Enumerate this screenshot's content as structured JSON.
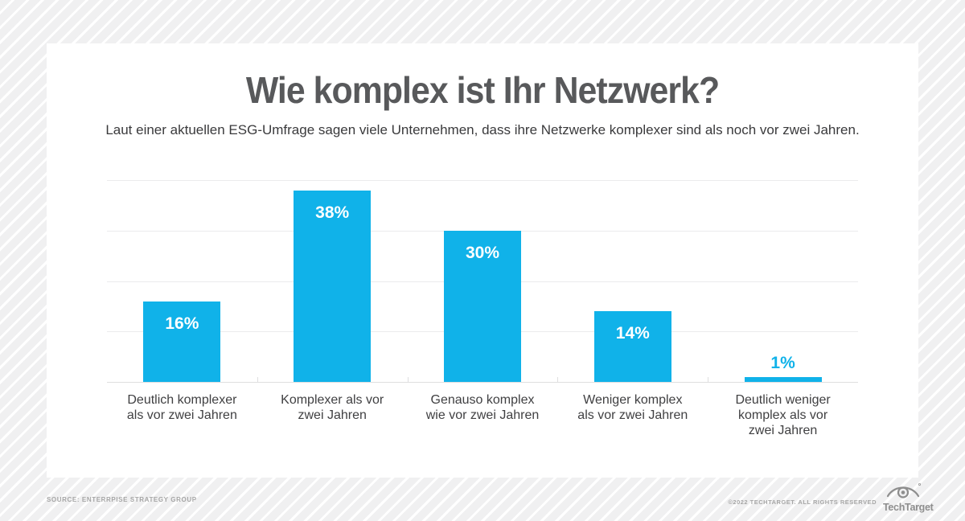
{
  "header": {
    "title": "Wie komplex ist Ihr Netzwerk?",
    "subtitle": "Laut einer aktuellen ESG-Umfrage sagen viele Unternehmen, dass ihre Netzwerke komplexer sind als noch vor zwei Jahren."
  },
  "chart_data": {
    "type": "bar",
    "title": "Wie komplex ist Ihr Netzwerk?",
    "subtitle": "Laut einer aktuellen ESG-Umfrage sagen viele Unternehmen, dass ihre Netzwerke komplexer sind als noch vor zwei Jahren.",
    "categories": [
      "Deutlich komplexer als vor zwei Jahren",
      "Komplexer als vor zwei Jahren",
      "Genauso komplex wie vor zwei Jahren",
      "Weniger komplex als vor zwei Jahren",
      "Deutlich weniger komplex als vor zwei Jahren"
    ],
    "label_lines": [
      [
        "Deutlich komplexer",
        "als vor zwei Jahren"
      ],
      [
        "Komplexer als vor",
        "zwei Jahren"
      ],
      [
        "Genauso komplex",
        "wie vor zwei Jahren"
      ],
      [
        "Weniger komplex",
        "als vor zwei Jahren"
      ],
      [
        "Deutlich weniger",
        "komplex als vor",
        "zwei Jahren"
      ]
    ],
    "values": [
      16,
      38,
      30,
      14,
      1
    ],
    "value_labels": [
      "16%",
      "38%",
      "30%",
      "14%",
      "1%"
    ],
    "xlabel": "",
    "ylabel": "",
    "ylim": [
      0,
      40
    ],
    "grid": true,
    "grid_interval": 10,
    "y_tick_labels_shown": false,
    "legend": "none",
    "bar_color": "#10b2e9",
    "value_label_color_inside": "#ffffff",
    "value_label_color_outside": "#10b2e9"
  },
  "footer": {
    "source": "SOURCE: ENTERRPISE STRATEGY GROUP",
    "copyright": "©2022 TECHTARGET. ALL RIGHTS RESERVED",
    "logo_text": "TechTarget"
  },
  "colors": {
    "accent": "#10b2e9",
    "title_gray": "#58595b",
    "text_gray": "#3a3a3c",
    "gridline": "#ebebed",
    "footer_gray": "#a6a6a6"
  }
}
